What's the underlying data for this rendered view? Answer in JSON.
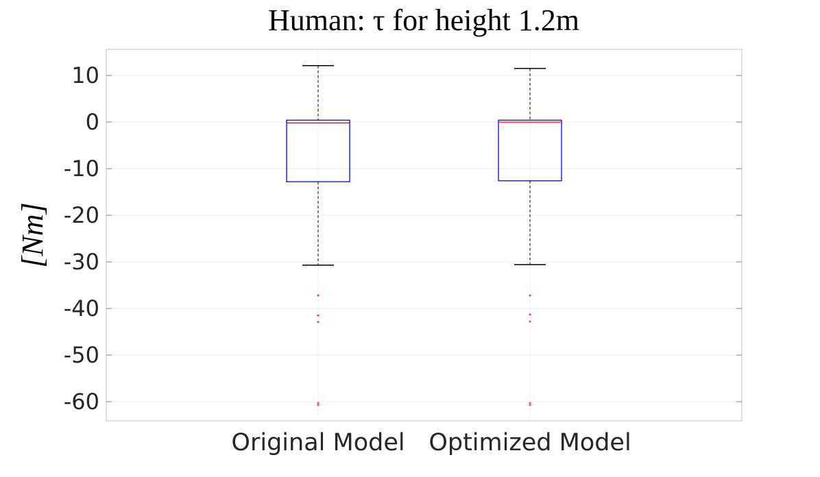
{
  "chart_data": {
    "type": "box",
    "title": "Human: τ for height 1.2m",
    "ylabel": "[Nm]",
    "categories": [
      "Original Model",
      "Optimized Model"
    ],
    "boxes": [
      {
        "whisker_low": -30.7,
        "q1": -12.8,
        "median": -0.2,
        "q3": 0.4,
        "whisker_high": 12.1,
        "outliers": [
          -37.2,
          -41.5,
          -42.9,
          -60.3,
          -60.7
        ]
      },
      {
        "whisker_low": -30.6,
        "q1": -12.6,
        "median": 0,
        "q3": 0.4,
        "whisker_high": 11.5,
        "outliers": [
          -37.2,
          -41.3,
          -42.8,
          -60.3,
          -60.7
        ]
      }
    ],
    "box_color": "#0000ff",
    "median_color": "#ff0000",
    "whisker_color": "#000000",
    "outlier_color": "#ff0000",
    "ylim": [
      -64.1,
      15.6
    ],
    "yticks": [
      -60,
      -50,
      -40,
      -30,
      -20,
      -10,
      0,
      10
    ],
    "grid": true
  }
}
